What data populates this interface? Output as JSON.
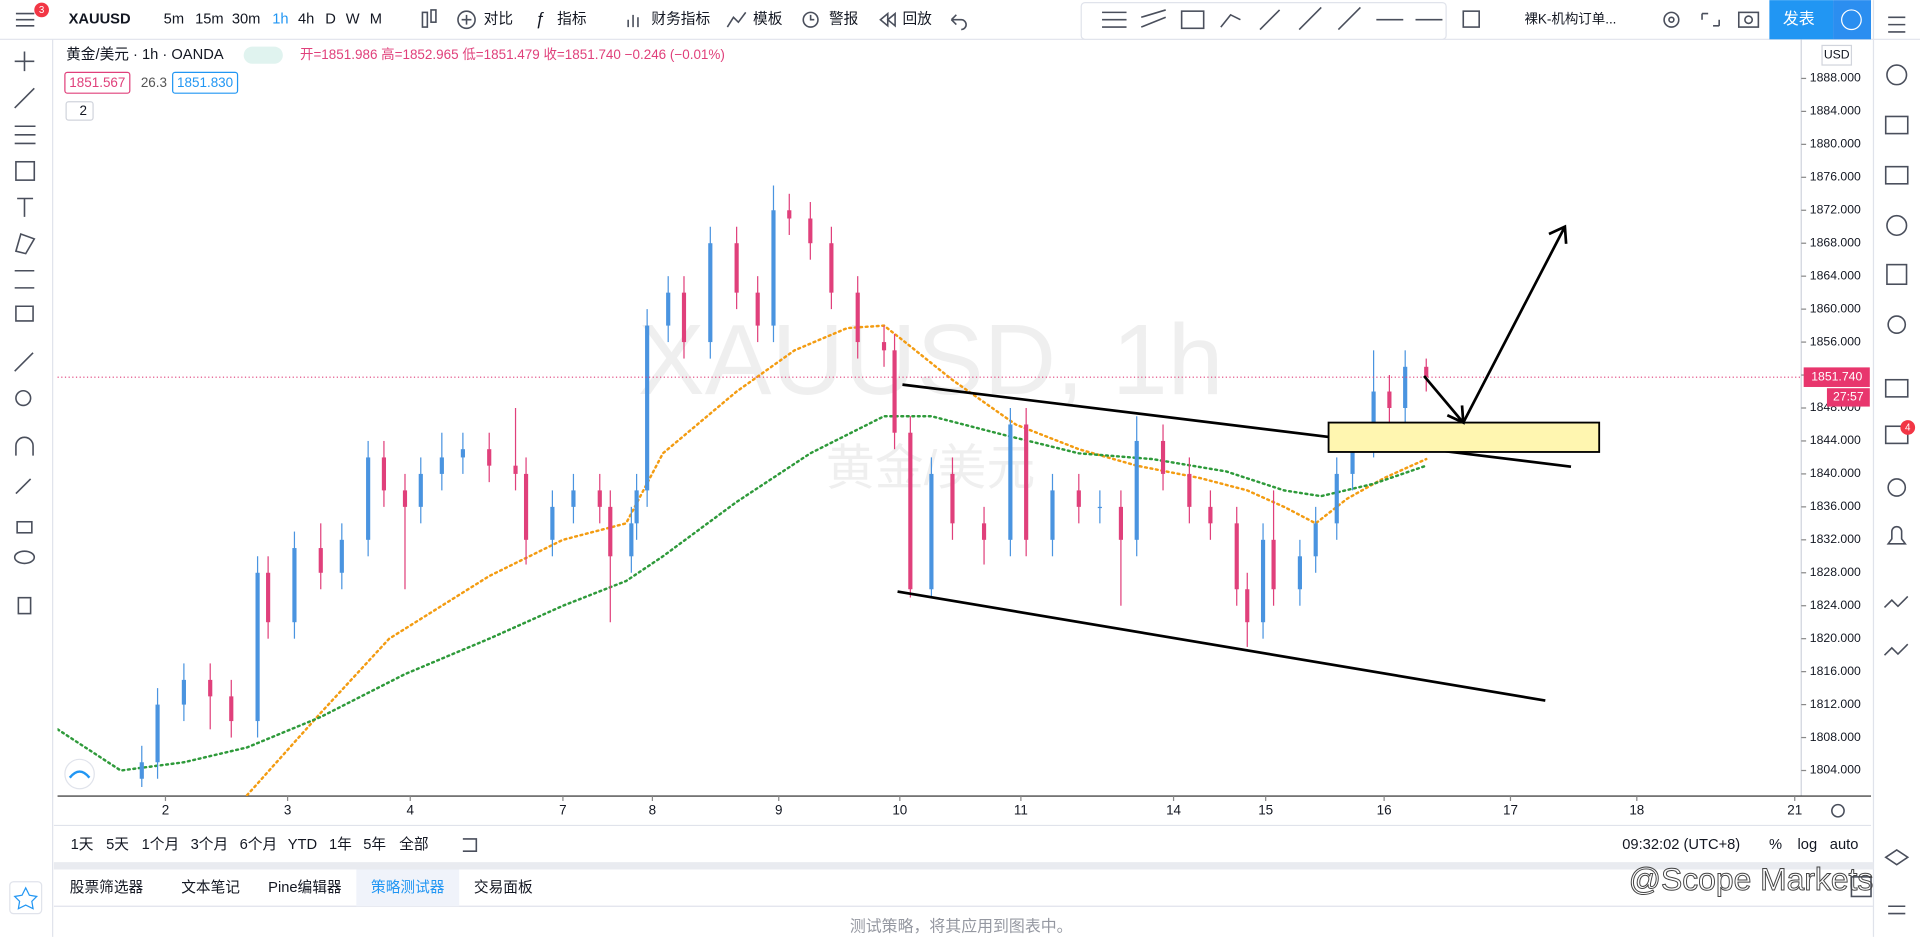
{
  "toolbar": {
    "symbol": "XAUUSD",
    "badge": "3",
    "intervals": [
      "5m",
      "15m",
      "30m",
      "1h",
      "4h",
      "D",
      "W",
      "M"
    ],
    "buttons": [
      "对比",
      "指标",
      "财务指标",
      "模板",
      "警报",
      "回放"
    ],
    "layout": "裸K-机构订单...",
    "publish": "发表"
  },
  "legend": {
    "name": "黄金/美元 · 1h · OANDA",
    "ohlc": "开=1851.986 高=1852.965 低=1851.479 收=1851.740 −0.246 (−0.01%)",
    "bid": "1851.567",
    "spread": "26.3",
    "ask": "1851.830",
    "collapse": "2"
  },
  "watermark": {
    "title": "XAUUSD, 1h",
    "subtitle": "黄金/美元"
  },
  "chart_data": {
    "type": "candlestick",
    "currency": "USD",
    "up_color": "#4a94e0",
    "down_color": "#e0407b",
    "x": [
      16,
      19,
      24,
      29,
      33,
      38,
      40,
      45,
      50,
      54,
      59,
      62,
      66,
      69,
      73,
      77,
      82,
      87,
      89,
      94,
      98,
      103,
      105,
      109,
      110,
      112,
      116,
      119,
      124,
      129,
      133,
      136,
      139,
      143,
      147,
      152,
      157,
      159,
      162,
      166,
      170,
      176,
      181,
      184,
      189,
      194,
      198,
      202,
      205,
      210,
      215,
      219,
      224,
      226,
      229,
      231,
      236,
      239,
      243,
      246,
      250,
      253,
      256,
      260
    ],
    "open": [
      1803,
      1805,
      1812,
      1815,
      1813,
      1810,
      1828,
      1822,
      1831,
      1828,
      1832,
      1842,
      1838,
      1836,
      1840,
      1842,
      1843,
      1841,
      1840,
      1832,
      1836,
      1838,
      1836,
      1830,
      1834,
      1838,
      1858,
      1862,
      1856,
      1868,
      1862,
      1858,
      1872,
      1871,
      1868,
      1862,
      1856,
      1855,
      1845,
      1826,
      1840,
      1834,
      1832,
      1846,
      1832,
      1838,
      1836,
      1836,
      1832,
      1844,
      1840,
      1836,
      1834,
      1826,
      1822,
      1832,
      1826,
      1830,
      1834,
      1840,
      1844,
      1850,
      1848,
      1853
    ],
    "high": [
      1807,
      1814,
      1817,
      1817,
      1815,
      1830,
      1830,
      1833,
      1834,
      1834,
      1844,
      1844,
      1840,
      1842,
      1845,
      1845,
      1845,
      1848,
      1842,
      1838,
      1840,
      1840,
      1838,
      1836,
      1840,
      1860,
      1864,
      1864,
      1870,
      1870,
      1864,
      1875,
      1874,
      1873,
      1870,
      1864,
      1858,
      1857,
      1847,
      1842,
      1842,
      1836,
      1848,
      1848,
      1840,
      1840,
      1838,
      1838,
      1847,
      1846,
      1842,
      1838,
      1836,
      1828,
      1834,
      1838,
      1832,
      1836,
      1842,
      1846,
      1855,
      1852,
      1855,
      1854
    ],
    "low": [
      1802,
      1803,
      1810,
      1809,
      1808,
      1808,
      1820,
      1820,
      1826,
      1826,
      1830,
      1836,
      1826,
      1834,
      1838,
      1840,
      1839,
      1838,
      1829,
      1830,
      1834,
      1834,
      1822,
      1828,
      1832,
      1836,
      1856,
      1854,
      1854,
      1860,
      1856,
      1856,
      1869,
      1866,
      1860,
      1854,
      1853,
      1843,
      1825,
      1825,
      1832,
      1829,
      1830,
      1830,
      1830,
      1834,
      1834,
      1824,
      1830,
      1838,
      1834,
      1832,
      1824,
      1819,
      1820,
      1824,
      1824,
      1828,
      1832,
      1838,
      1842,
      1846,
      1846,
      1850
    ],
    "close": [
      1805,
      1812,
      1815,
      1813,
      1810,
      1828,
      1822,
      1831,
      1828,
      1832,
      1842,
      1838,
      1836,
      1840,
      1842,
      1843,
      1841,
      1840,
      1832,
      1836,
      1838,
      1836,
      1830,
      1834,
      1838,
      1858,
      1862,
      1856,
      1868,
      1862,
      1858,
      1872,
      1871,
      1868,
      1862,
      1856,
      1855,
      1845,
      1826,
      1840,
      1834,
      1832,
      1846,
      1832,
      1838,
      1836,
      1836,
      1832,
      1844,
      1840,
      1836,
      1834,
      1826,
      1822,
      1832,
      1826,
      1830,
      1834,
      1840,
      1844,
      1850,
      1848,
      1853,
      1851.74
    ],
    "moving_averages": [
      {
        "color": "#f39c12",
        "x": [
          36,
          50,
          63,
          82,
          96,
          108,
          115,
          129,
          140,
          150,
          157,
          161,
          170,
          182,
          194,
          205,
          217,
          226,
          233,
          239,
          245,
          252,
          260
        ],
        "values": [
          1801,
          1811,
          1820,
          1827.6,
          1832,
          1834,
          1842.5,
          1850,
          1855,
          1857.7,
          1858,
          1856,
          1851.4,
          1846,
          1843,
          1841,
          1839.5,
          1838,
          1836,
          1834,
          1837,
          1839.5,
          1841.8
        ]
      },
      {
        "color": "#2e9a3a",
        "x": [
          0,
          12,
          24,
          36,
          50,
          66,
          82,
          96,
          108,
          115,
          129,
          143,
          157,
          166,
          180,
          194,
          208,
          222,
          233,
          240,
          250,
          260
        ],
        "values": [
          1809,
          1804,
          1805,
          1806.8,
          1810.5,
          1815.7,
          1820,
          1824,
          1827,
          1830,
          1836.6,
          1842.5,
          1847,
          1847,
          1844.7,
          1842.5,
          1841.8,
          1840.3,
          1838,
          1837.3,
          1838.8,
          1841
        ]
      }
    ],
    "last_price": {
      "value": 1851.74,
      "label": "1851.740"
    },
    "countdown": "27:57",
    "xlim": [
      0,
      331
    ],
    "xticks": [
      {
        "value": 20.5,
        "label": "2"
      },
      {
        "value": 43.7,
        "label": "3"
      },
      {
        "value": 67,
        "label": "4"
      },
      {
        "value": 96,
        "label": "7"
      },
      {
        "value": 113,
        "label": "8"
      },
      {
        "value": 137,
        "label": "9"
      },
      {
        "value": 160,
        "label": "10"
      },
      {
        "value": 183,
        "label": "11"
      },
      {
        "value": 212,
        "label": "14"
      },
      {
        "value": 229.5,
        "label": "15"
      },
      {
        "value": 252,
        "label": "16"
      },
      {
        "value": 276,
        "label": "17"
      },
      {
        "value": 300,
        "label": "18"
      },
      {
        "value": 330,
        "label": "21"
      }
    ],
    "ylim": [
      1800.9,
      1892.6
    ],
    "yticks": [
      {
        "value": 1804,
        "label": "1804.000"
      },
      {
        "value": 1808,
        "label": "1808.000"
      },
      {
        "value": 1812,
        "label": "1812.000"
      },
      {
        "value": 1816,
        "label": "1816.000"
      },
      {
        "value": 1820,
        "label": "1820.000"
      },
      {
        "value": 1824,
        "label": "1824.000"
      },
      {
        "value": 1828,
        "label": "1828.000"
      },
      {
        "value": 1832,
        "label": "1832.000"
      },
      {
        "value": 1836,
        "label": "1836.000"
      },
      {
        "value": 1840,
        "label": "1840.000"
      },
      {
        "value": 1844,
        "label": "1844.000"
      },
      {
        "value": 1848,
        "label": "1848.000"
      },
      {
        "value": 1852,
        "label": "1852.000"
      },
      {
        "value": 1856,
        "label": "1856.000"
      },
      {
        "value": 1860,
        "label": "1860.000"
      },
      {
        "value": 1864,
        "label": "1864.000"
      },
      {
        "value": 1868,
        "label": "1868.000"
      },
      {
        "value": 1872,
        "label": "1872.000"
      },
      {
        "value": 1876,
        "label": "1876.000"
      },
      {
        "value": 1880,
        "label": "1880.000"
      },
      {
        "value": 1884,
        "label": "1884.000"
      },
      {
        "value": 1888,
        "label": "1888.000"
      }
    ]
  },
  "bottom": {
    "ranges": [
      "1天",
      "5天",
      "1个月",
      "3个月",
      "6个月",
      "YTD",
      "1年",
      "5年",
      "全部"
    ],
    "clock": "09:32:02 (UTC+8)",
    "scale_options": [
      "%",
      "log",
      "auto"
    ]
  },
  "tabs": [
    "股票筛选器",
    "文本笔记",
    "Pine编辑器",
    "策略测试器",
    "交易面板"
  ],
  "footer_note": "测试策略，将其应用到图表中。",
  "credit": "@Scope Markets",
  "alerts_badge": "4"
}
